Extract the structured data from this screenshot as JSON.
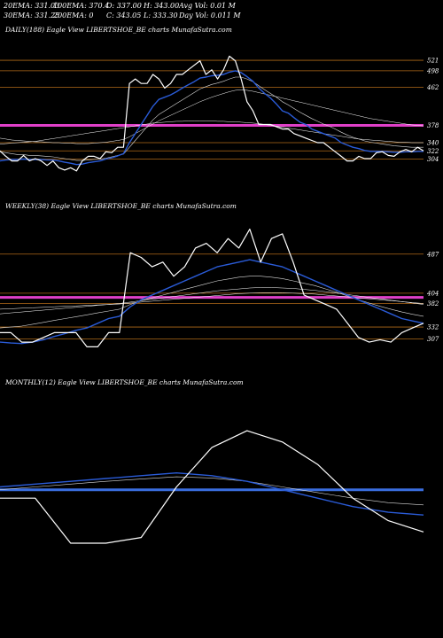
{
  "stats": {
    "row1": [
      "20EMA: 331.03",
      "100EMA: 370.4",
      "O: 337.00",
      "H: 343.00",
      "Avg Vol: 0.01 M"
    ],
    "row2": [
      "30EMA: 331.25",
      "200EMA: 0",
      "C: 343.05",
      "L: 333.30",
      "Day Vol: 0.011 M"
    ]
  },
  "chart_data": [
    {
      "type": "line",
      "title": "DAILY(188) Eagle   View  LIBERTSHOE_BE charts MunafaSutra.com",
      "ylim": [
        270,
        560
      ],
      "levels": [
        521,
        498,
        462,
        378,
        340,
        322,
        304
      ],
      "level_labels": [
        "521",
        "498",
        "462",
        "378",
        "340",
        "322",
        "304"
      ],
      "highlight_level": 378,
      "highlight_color": "#e040c8",
      "level_color": "#b06a18",
      "price": [
        322,
        310,
        300,
        300,
        312,
        300,
        305,
        300,
        290,
        300,
        285,
        280,
        285,
        278,
        300,
        310,
        310,
        305,
        320,
        318,
        330,
        330,
        470,
        480,
        470,
        470,
        490,
        480,
        460,
        470,
        490,
        490,
        500,
        510,
        520,
        490,
        500,
        480,
        500,
        530,
        520,
        480,
        430,
        410,
        380,
        380,
        380,
        375,
        370,
        370,
        360,
        355,
        350,
        345,
        340,
        340,
        330,
        320,
        310,
        300,
        300,
        310,
        305,
        305,
        318,
        320,
        312,
        310,
        320,
        325,
        320,
        330,
        322
      ],
      "ema20": [
        300,
        302,
        303,
        303,
        304,
        303,
        303,
        303,
        302,
        302,
        300,
        297,
        295,
        292,
        293,
        296,
        298,
        300,
        304,
        307,
        311,
        316,
        340,
        360,
        380,
        400,
        420,
        435,
        440,
        445,
        452,
        460,
        467,
        474,
        482,
        484,
        487,
        488,
        490,
        495,
        498,
        494,
        485,
        475,
        460,
        448,
        438,
        425,
        410,
        405,
        395,
        385,
        380,
        370,
        365,
        360,
        355,
        350,
        340,
        335,
        330,
        327,
        323,
        321,
        321,
        321,
        320,
        319,
        319,
        320,
        320,
        321,
        321
      ],
      "ema30": [
        320,
        318,
        316,
        314,
        314,
        312,
        312,
        311,
        310,
        309,
        307,
        305,
        303,
        301,
        301,
        302,
        303,
        304,
        306,
        309,
        312,
        315,
        330,
        345,
        360,
        375,
        390,
        402,
        410,
        418,
        426,
        434,
        442,
        450,
        458,
        463,
        468,
        471,
        475,
        480,
        484,
        484,
        480,
        474,
        465,
        456,
        448,
        440,
        430,
        423,
        415,
        407,
        400,
        393,
        387,
        381,
        376,
        370,
        363,
        357,
        352,
        348,
        344,
        341,
        339,
        337,
        335,
        333,
        332,
        331,
        330,
        330,
        330
      ],
      "ema100": [
        350,
        348,
        346,
        345,
        344,
        343,
        342,
        342,
        341,
        340,
        340,
        339,
        339,
        338,
        338,
        338,
        339,
        340,
        341,
        343,
        345,
        347,
        353,
        360,
        367,
        374,
        381,
        388,
        394,
        400,
        406,
        412,
        418,
        424,
        430,
        435,
        440,
        444,
        448,
        452,
        455,
        456,
        455,
        453,
        450,
        447,
        444,
        441,
        438,
        435,
        432,
        429,
        426,
        423,
        420,
        417,
        414,
        411,
        408,
        405,
        402,
        399,
        396,
        393,
        391,
        389,
        387,
        385,
        383,
        381,
        379,
        378,
        377
      ],
      "ema200": [
        337,
        338,
        339,
        340,
        341,
        342,
        343,
        345,
        347,
        349,
        351,
        353,
        355,
        357,
        359,
        361,
        363,
        365,
        367,
        369,
        371,
        373,
        375,
        377,
        379,
        381,
        383,
        384,
        385,
        386,
        387,
        387,
        388,
        388,
        388,
        388,
        388,
        387,
        387,
        386,
        386,
        385,
        384,
        383,
        382,
        380,
        378,
        376,
        374,
        372,
        370,
        368,
        366,
        364,
        362,
        360,
        358,
        356,
        354,
        352,
        350,
        348,
        347,
        346,
        345,
        344,
        343,
        342,
        341,
        341,
        340,
        340,
        340
      ]
    },
    {
      "type": "line",
      "title": "WEEKLY(38) Eagle   View  LIBERTSHOE_BE charts MunafaSutra.com",
      "ylim": [
        270,
        560
      ],
      "levels": [
        487,
        404,
        382,
        332,
        307
      ],
      "level_labels": [
        "487",
        "404",
        "382",
        "332",
        "307"
      ],
      "highlight_level": 395,
      "highlight_color": "#e040c8",
      "level_color": "#b06a18",
      "price": [
        320,
        320,
        300,
        300,
        310,
        320,
        320,
        320,
        290,
        290,
        320,
        320,
        490,
        480,
        460,
        470,
        440,
        460,
        500,
        510,
        490,
        520,
        500,
        540,
        470,
        520,
        530,
        470,
        400,
        390,
        380,
        370,
        340,
        310,
        300,
        305,
        300,
        320,
        330,
        340
      ],
      "ema20": [
        300,
        298,
        297,
        300,
        305,
        312,
        318,
        325,
        330,
        340,
        350,
        355,
        375,
        390,
        400,
        410,
        420,
        430,
        440,
        450,
        460,
        465,
        470,
        475,
        470,
        465,
        460,
        450,
        440,
        430,
        420,
        410,
        400,
        390,
        380,
        370,
        360,
        350,
        345,
        340
      ],
      "ema30": [
        330,
        332,
        334,
        338,
        342,
        346,
        350,
        354,
        358,
        362,
        366,
        370,
        380,
        388,
        394,
        400,
        406,
        412,
        418,
        424,
        430,
        434,
        438,
        440,
        440,
        438,
        435,
        430,
        425,
        420,
        413,
        406,
        398,
        390,
        383,
        376,
        370,
        364,
        359,
        355
      ],
      "ema100": [
        360,
        362,
        364,
        366,
        368,
        370,
        372,
        374,
        376,
        378,
        380,
        382,
        385,
        388,
        391,
        394,
        397,
        400,
        403,
        406,
        409,
        411,
        413,
        415,
        416,
        416,
        415,
        414,
        412,
        410,
        407,
        404,
        401,
        398,
        395,
        392,
        389,
        386,
        383,
        380
      ],
      "ema200": [
        370,
        371,
        372,
        373,
        374,
        375,
        376,
        377,
        378,
        379,
        380,
        381,
        383,
        385,
        387,
        389,
        391,
        393,
        395,
        397,
        399,
        401,
        403,
        404,
        405,
        405,
        405,
        404,
        403,
        402,
        400,
        398,
        396,
        394,
        392,
        390,
        388,
        386,
        384,
        382
      ]
    },
    {
      "type": "line",
      "title": "MONTHLY(12) Eagle   View  LIBERTSHOE_BE charts MunafaSutra.com",
      "ylim": [
        270,
        560
      ],
      "levels": [],
      "level_labels": [],
      "highlight_level": 395,
      "highlight_color": "#3a6ee0",
      "level_color": "#b06a18",
      "price": [
        380,
        380,
        300,
        300,
        310,
        400,
        470,
        500,
        480,
        440,
        380,
        340,
        320
      ],
      "ema20": [
        400,
        405,
        410,
        415,
        420,
        425,
        420,
        410,
        395,
        380,
        365,
        355,
        350
      ],
      "ema30": [
        395,
        400,
        405,
        410,
        414,
        418,
        416,
        410,
        400,
        390,
        380,
        372,
        368
      ],
      "ema100": [],
      "ema200": []
    }
  ]
}
